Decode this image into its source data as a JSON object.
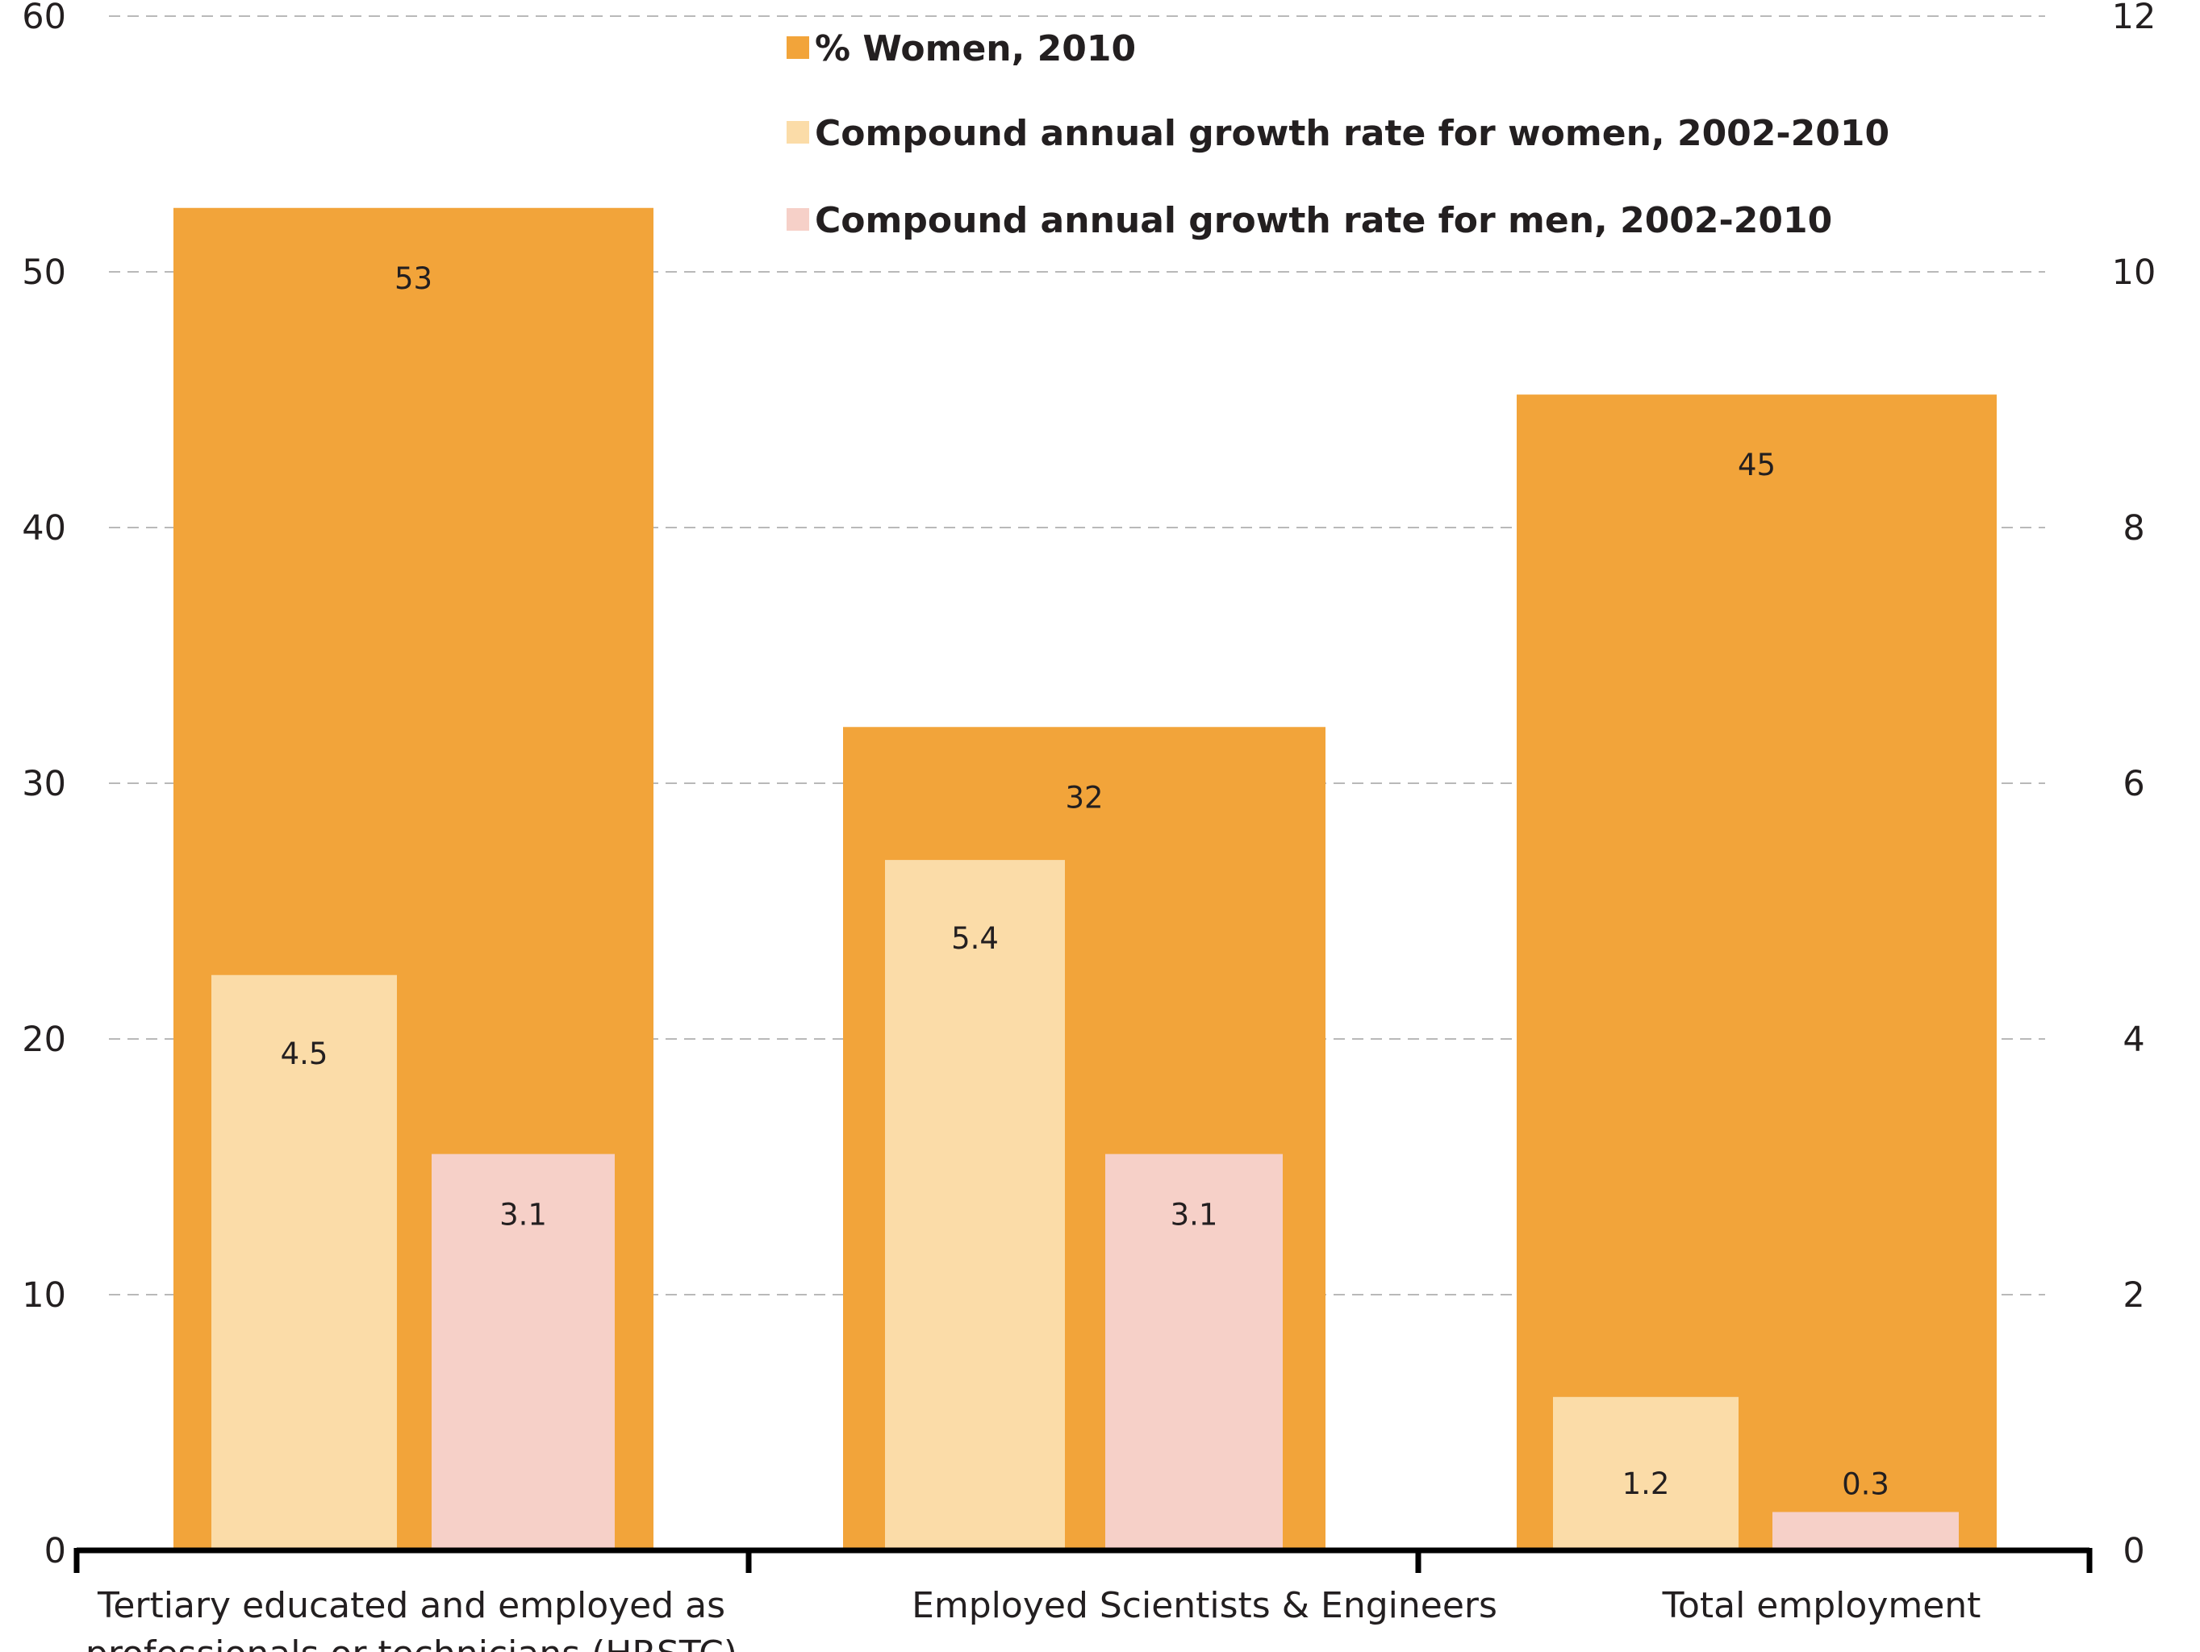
{
  "colors": {
    "pct_women": "#f2a43a",
    "growth_women": "#fbdca8",
    "growth_men": "#f6d0c8",
    "grid": "#b9b9b9",
    "axis": "#000000"
  },
  "chart_data": {
    "type": "bar",
    "categories": [
      [
        "Tertiary educated and employed as",
        "professionals or technicians (HRSTC)"
      ],
      [
        "Employed Scientists & Engineers"
      ],
      [
        "Total employment"
      ]
    ],
    "series": [
      {
        "name": "% Women, 2010",
        "axis": "left",
        "values": [
          52.5,
          32.2,
          45.2
        ],
        "labels": [
          "53",
          "32",
          "45"
        ]
      },
      {
        "name": "Compound annual growth rate for women, 2002-2010",
        "axis": "right",
        "values": [
          4.5,
          5.4,
          1.2
        ],
        "labels": [
          "4.5",
          "5.4",
          "1.2"
        ]
      },
      {
        "name": "Compound annual growth rate for men, 2002-2010",
        "axis": "right",
        "values": [
          3.1,
          3.1,
          0.3
        ],
        "labels": [
          "3.1",
          "3.1",
          "0.3"
        ]
      }
    ],
    "y_left": {
      "range": [
        0,
        60
      ],
      "ticks": [
        "0",
        "10",
        "20",
        "30",
        "40",
        "50",
        "60"
      ]
    },
    "y_right": {
      "range": [
        0,
        12
      ],
      "ticks": [
        "0",
        "2",
        "4",
        "6",
        "8",
        "10",
        "12"
      ]
    },
    "grid": true,
    "legend_position": "top-center"
  }
}
